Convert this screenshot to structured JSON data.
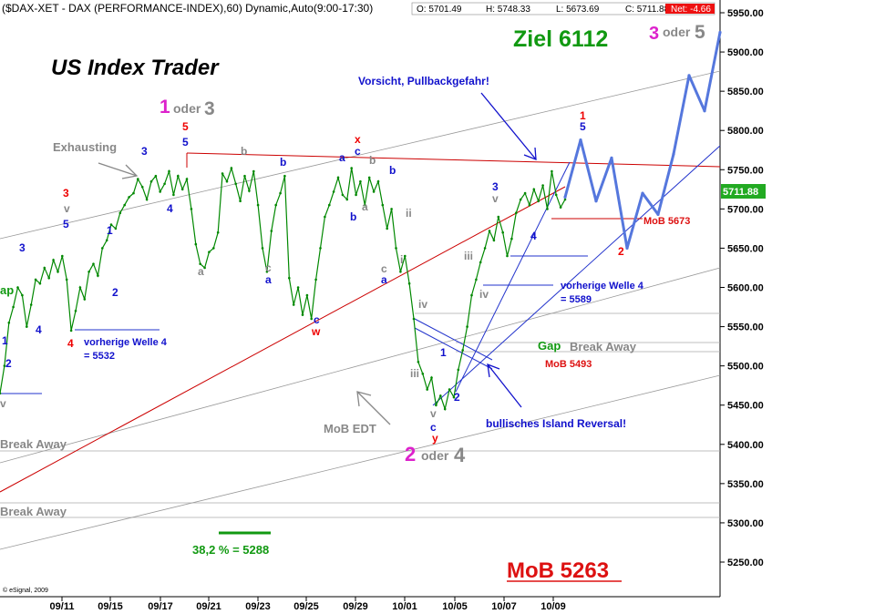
{
  "header": {
    "title": "($DAX-XET - DAX (PERFORMANCE-INDEX),60) Dynamic,Auto(9:00-17:30)",
    "open": "O: 5701.49",
    "high": "H: 5748.33",
    "low": "L: 5673.69",
    "close": "C: 5711.88",
    "net": "Net: -4.66"
  },
  "chart_title": "US Index Trader",
  "copyright": "© eSignal, 2009",
  "last_price_label": "5711.88",
  "chart_data": {
    "type": "line",
    "xlabel": "",
    "ylabel": "",
    "ylim": [
      5200,
      5970
    ],
    "yticks": [
      5250,
      5300,
      5350,
      5400,
      5450,
      5500,
      5550,
      5600,
      5650,
      5700,
      5750,
      5800,
      5850,
      5900,
      5950
    ],
    "ytick_labels": [
      "5250.00",
      "5300.00",
      "5350.00",
      "5400.00",
      "5450.00",
      "5500.00",
      "5550.00",
      "5600.00",
      "5650.00",
      "5700.00",
      "5750.00",
      "5800.00",
      "5850.00",
      "5900.00",
      "5950.00"
    ],
    "xticks": [
      "09/11",
      "09/15",
      "09/17",
      "09/21",
      "09/23",
      "09/25",
      "09/29",
      "10/01",
      "10/05",
      "10/07",
      "10/09"
    ],
    "grid": false,
    "series": [
      {
        "values": [
          5465,
          5500,
          5555,
          5575,
          5600,
          5590,
          5550,
          5578,
          5610,
          5605,
          5625,
          5612,
          5635,
          5620,
          5640,
          5610,
          5545,
          5570,
          5600,
          5585,
          5620,
          5630,
          5615,
          5650,
          5660,
          5680,
          5675,
          5695,
          5705,
          5715,
          5720,
          5738,
          5728,
          5712,
          5735,
          5742,
          5722,
          5732,
          5748,
          5718,
          5742,
          5725,
          5738,
          5700,
          5655,
          5630,
          5625,
          5645,
          5650,
          5670,
          5745,
          5735,
          5752,
          5732,
          5710,
          5742,
          5723,
          5748,
          5705,
          5650,
          5620,
          5672,
          5705,
          5720,
          5742,
          5612,
          5578,
          5600,
          5565,
          5590,
          5560,
          5610,
          5650,
          5690,
          5705,
          5722,
          5740,
          5718,
          5712,
          5752,
          5718,
          5735,
          5705,
          5740,
          5722,
          5735,
          5705,
          5675,
          5700,
          5650,
          5620,
          5640,
          5605,
          5560,
          5505,
          5490,
          5470,
          5485,
          5450,
          5462,
          5445,
          5470,
          5460,
          5495,
          5520,
          5550,
          5590,
          5610,
          5632,
          5650,
          5672,
          5660,
          5690,
          5670,
          5640,
          5662,
          5695,
          5712,
          5720,
          5705,
          5725,
          5710,
          5730,
          5700,
          5748,
          5718,
          5702,
          5712
        ]
      },
      {
        "name": "projection",
        "values": [
          5715,
          5788,
          5710,
          5765,
          5650,
          5720,
          5693,
          5770,
          5870,
          5825,
          5925
        ]
      }
    ]
  },
  "annotations": {
    "wave1_main": "1",
    "wave1_oder": "oder",
    "wave1_alt": "3",
    "ziel": "Ziel 6112",
    "wave3_main": "3",
    "wave3_oder": "oder",
    "wave3_alt": "5",
    "wave2_main": "2",
    "wave2_oder": "oder",
    "wave2_alt": "4",
    "exhausting": "Exhausting",
    "vorsicht": "Vorsicht, Pullbackgefahr!",
    "mob_5673": "MoB 5673",
    "vorherige_right_line1": "vorherige  Welle 4",
    "vorherige_right_line2": "= 5589",
    "vorherige_left_line1": "vorherige  Welle 4",
    "vorherige_left_line2": "= 5532",
    "gap_right": "Gap",
    "break_away_right": "Break Away",
    "mob_5493": "MoB 5493",
    "island": "bullisches Island Reversal!",
    "mob_edt": "MoB EDT",
    "break_away_left1": "Break Away",
    "break_away_left2": "Break Away",
    "gap_left": "ap",
    "fib": "38,2 % = 5288",
    "mob_5263": "MoB 5263",
    "lbl_red3": "3",
    "lbl_v1": "v",
    "lbl_5a": "5",
    "lbl_3a": "3",
    "lbl_1a": "1",
    "lbl_2a": "2",
    "lbl_4a": "4",
    "lbl_red4a": "4",
    "lbl_1b": "1",
    "lbl_2b": "2",
    "lbl_v2": "v",
    "lbl_3b": "3",
    "lbl_4b": "4",
    "lbl_red5a": "5",
    "lbl_5b": "5",
    "lbl_b1": "b",
    "lbl_b2": "b",
    "lbl_a1": "a",
    "lbl_c1": "c",
    "lbl_a2": "a",
    "lbl_cw_c": "c",
    "lbl_cw_w": "w",
    "lbl_x": "x",
    "lbl_c2": "c",
    "lbl_a3": "a",
    "lbl_b3": "b",
    "lbl_b4": "b",
    "lbl_a4": "a",
    "lbl_b5": "b",
    "lbl_ii": "ii",
    "lbl_i": "i",
    "lbl_c3": "c",
    "lbl_a5": "a",
    "lbl_iv1": "iv",
    "lbl_iii1": "iii",
    "lbl_v3": "v",
    "lbl_c4": "c",
    "lbl_y": "y",
    "lbl_1c": "1",
    "lbl_2c": "2",
    "lbl_iii2": "iii",
    "lbl_iv2": "iv",
    "lbl_3c": "3",
    "lbl_v4": "v",
    "lbl_4c": "4",
    "lbl_red1": "1",
    "lbl_5c": "5",
    "lbl_red2": "2"
  },
  "colors": {
    "price": "#008800",
    "projection": "#5577dd",
    "resistance": "#cc0000",
    "channel": "#999999",
    "trendline": "#2233cc",
    "wave_red": "#ee0000",
    "wave_blue": "#1111cc",
    "wave_gray": "#888888",
    "magenta": "#dd22cc",
    "green_text": "#119911",
    "mob_red": "#dd1111"
  }
}
